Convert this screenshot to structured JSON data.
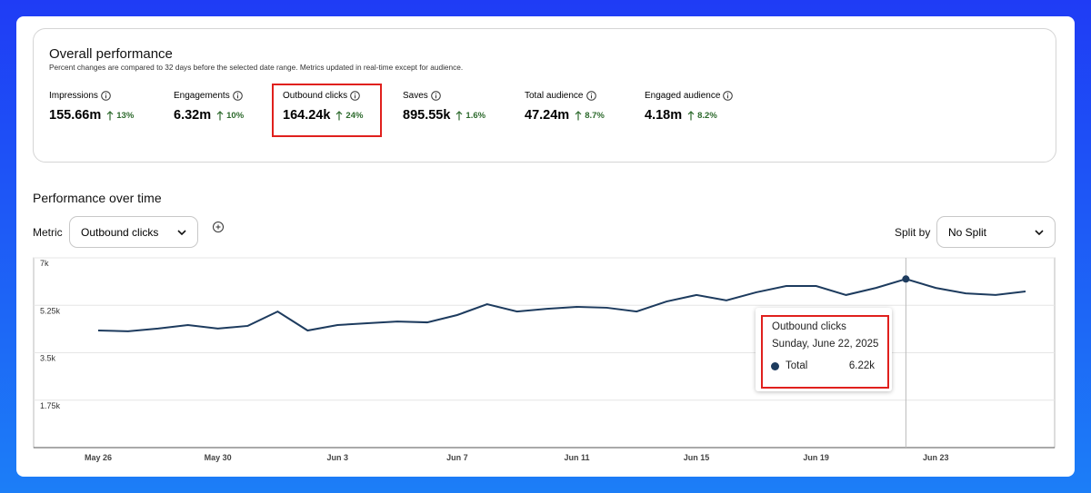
{
  "header": {
    "title": "Overall performance",
    "subtitle": "Percent changes are compared to 32 days before the selected date range. Metrics updated in real-time except for audience."
  },
  "metrics": [
    {
      "label": "Impressions",
      "value": "155.66m",
      "change": "13%"
    },
    {
      "label": "Engagements",
      "value": "6.32m",
      "change": "10%"
    },
    {
      "label": "Outbound clicks",
      "value": "164.24k",
      "change": "24%"
    },
    {
      "label": "Saves",
      "value": "895.55k",
      "change": "1.6%"
    },
    {
      "label": "Total audience",
      "value": "47.24m",
      "change": "8.7%"
    },
    {
      "label": "Engaged audience",
      "value": "4.18m",
      "change": "8.2%"
    }
  ],
  "section_title": "Performance over time",
  "controls": {
    "metric_label": "Metric",
    "metric_value": "Outbound clicks",
    "split_label": "Split by",
    "split_value": "No Split"
  },
  "chart_data": {
    "type": "line",
    "categories": [
      "May 26",
      null,
      null,
      null,
      "May 30",
      null,
      null,
      null,
      "Jun 3",
      null,
      null,
      null,
      "Jun 7",
      null,
      null,
      null,
      "Jun 11",
      null,
      null,
      null,
      "Jun 15",
      null,
      null,
      null,
      "Jun 19",
      null,
      null,
      null,
      "Jun 23",
      null,
      null,
      null
    ],
    "series": [
      {
        "name": "Total",
        "color": "#1d3b5e",
        "values": [
          4320,
          4290,
          4390,
          4520,
          4390,
          4490,
          5020,
          4320,
          4520,
          4590,
          4650,
          4620,
          4890,
          5290,
          5020,
          5120,
          5190,
          5160,
          5020,
          5390,
          5630,
          5430,
          5730,
          5960,
          5960,
          5630,
          5890,
          6220,
          5890,
          5690,
          5630,
          5760
        ]
      }
    ],
    "ylim": [
      0,
      7000
    ],
    "yticks": [
      {
        "value": 1750,
        "label": "1.75k"
      },
      {
        "value": 3500,
        "label": "3.5k"
      },
      {
        "value": 5250,
        "label": "5.25k"
      },
      {
        "value": 7000,
        "label": "7k"
      }
    ],
    "grid": true
  },
  "tooltip": {
    "title": "Outbound clicks",
    "date": "Sunday, June 22, 2025",
    "value": "6.22k"
  }
}
